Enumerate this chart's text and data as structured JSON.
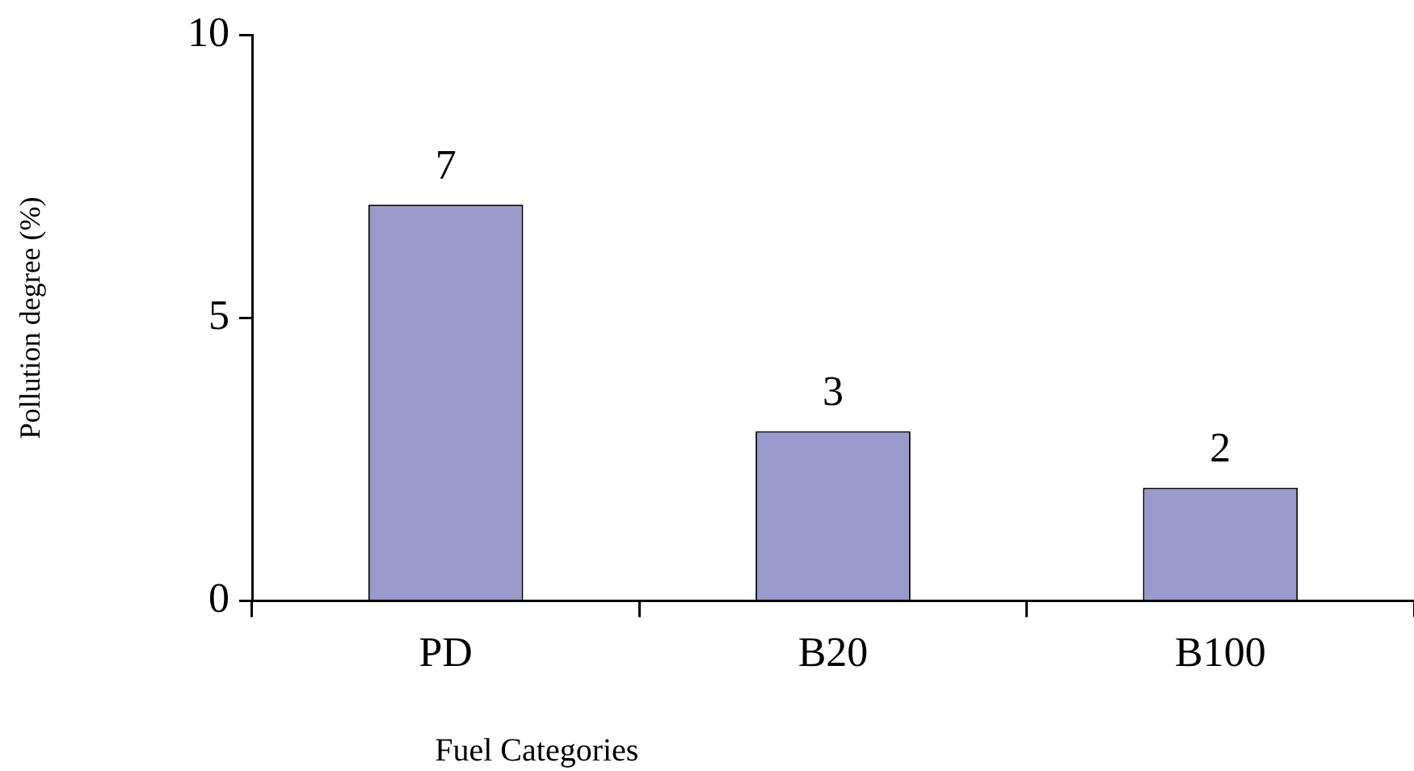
{
  "chart_data": {
    "type": "bar",
    "xlabel": "Fuel Categories",
    "ylabel": "Pollution degree (%)",
    "categories": [
      "PD",
      "B20",
      "B100"
    ],
    "values": [
      7,
      3,
      2
    ],
    "color": "#9999cc",
    "ylim": [
      0,
      10
    ],
    "yticks": [
      0,
      5,
      10
    ],
    "grid": false,
    "legend": false,
    "data_labels": true
  }
}
